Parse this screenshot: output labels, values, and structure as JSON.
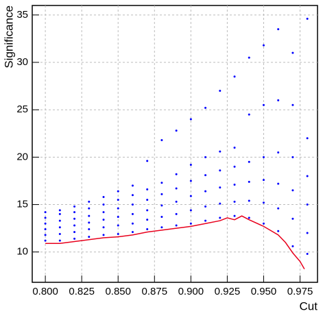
{
  "chart_data": {
    "type": "scatter",
    "x_label": "Cut",
    "y_label": "Significance",
    "xlim": [
      0.791,
      0.987
    ],
    "ylim": [
      6.8,
      36
    ],
    "xticks": [
      {
        "value": 0.8,
        "label": "0.800"
      },
      {
        "value": 0.825,
        "label": "0.825"
      },
      {
        "value": 0.85,
        "label": "0.850"
      },
      {
        "value": 0.875,
        "label": "0.875"
      },
      {
        "value": 0.9,
        "label": "0.900"
      },
      {
        "value": 0.925,
        "label": "0.925"
      },
      {
        "value": 0.95,
        "label": "0.950"
      },
      {
        "value": 0.975,
        "label": "0.975"
      }
    ],
    "yticks": [
      10,
      15,
      20,
      25,
      30,
      35
    ],
    "grid": true,
    "series": [
      {
        "color": "#0000ff",
        "marker": "dot",
        "x": [
          0.8,
          0.8,
          0.8,
          0.8,
          0.8,
          0.8,
          0.81,
          0.81,
          0.81,
          0.81,
          0.81,
          0.81,
          0.82,
          0.82,
          0.82,
          0.82,
          0.82,
          0.82,
          0.83,
          0.83,
          0.83,
          0.83,
          0.83,
          0.83,
          0.84,
          0.84,
          0.84,
          0.84,
          0.84,
          0.84,
          0.85,
          0.85,
          0.85,
          0.85,
          0.85,
          0.85,
          0.86,
          0.86,
          0.86,
          0.86,
          0.86,
          0.86,
          0.87,
          0.87,
          0.87,
          0.87,
          0.87,
          0.87,
          0.88,
          0.88,
          0.88,
          0.88,
          0.88,
          0.88,
          0.89,
          0.89,
          0.89,
          0.89,
          0.89,
          0.89,
          0.9,
          0.9,
          0.9,
          0.9,
          0.9,
          0.9,
          0.91,
          0.91,
          0.91,
          0.91,
          0.91,
          0.91,
          0.92,
          0.92,
          0.92,
          0.92,
          0.92,
          0.92,
          0.93,
          0.93,
          0.93,
          0.93,
          0.93,
          0.93,
          0.94,
          0.94,
          0.94,
          0.94,
          0.94,
          0.94,
          0.95,
          0.95,
          0.95,
          0.95,
          0.95,
          0.95,
          0.96,
          0.96,
          0.96,
          0.96,
          0.96,
          0.96,
          0.97,
          0.97,
          0.97,
          0.97,
          0.97,
          0.97,
          0.98,
          0.98,
          0.98,
          0.98,
          0.98,
          0.98
        ],
        "values": [
          11.2,
          11.8,
          12.4,
          13.0,
          13.6,
          14.2,
          11.2,
          11.9,
          12.6,
          13.3,
          14.0,
          14.4,
          11.4,
          12.1,
          12.8,
          13.5,
          14.2,
          14.8,
          11.6,
          12.4,
          13.1,
          13.8,
          14.6,
          15.3,
          11.8,
          12.6,
          13.4,
          14.2,
          15.0,
          15.8,
          11.9,
          12.8,
          13.7,
          14.6,
          15.5,
          16.4,
          12.1,
          13.0,
          14.0,
          15.0,
          16.0,
          17.0,
          12.4,
          13.4,
          14.4,
          15.5,
          16.6,
          19.6,
          12.6,
          13.7,
          14.9,
          16.1,
          17.3,
          21.8,
          12.8,
          14.0,
          15.3,
          16.7,
          18.2,
          22.8,
          13.0,
          14.4,
          15.9,
          17.5,
          19.2,
          24.0,
          13.3,
          14.8,
          16.4,
          18.1,
          20.0,
          25.2,
          13.6,
          15.1,
          16.8,
          18.6,
          20.6,
          27.0,
          13.8,
          15.3,
          17.1,
          19.0,
          21.0,
          28.5,
          13.6,
          15.4,
          17.4,
          19.5,
          24.5,
          30.5,
          13.0,
          15.2,
          17.6,
          20.0,
          25.5,
          31.8,
          12.2,
          14.6,
          17.2,
          20.5,
          26.0,
          33.5,
          10.6,
          13.5,
          16.5,
          20.0,
          25.5,
          31.0,
          9.8,
          12.0,
          15.0,
          18.0,
          22.0,
          34.6
        ]
      },
      {
        "color": "#e8001c",
        "marker": "line",
        "x": [
          0.8,
          0.81,
          0.82,
          0.83,
          0.84,
          0.85,
          0.86,
          0.87,
          0.88,
          0.89,
          0.9,
          0.91,
          0.92,
          0.925,
          0.93,
          0.935,
          0.94,
          0.95,
          0.96,
          0.965,
          0.97,
          0.975,
          0.978
        ],
        "values": [
          10.9,
          10.9,
          11.1,
          11.3,
          11.5,
          11.6,
          11.8,
          12.1,
          12.3,
          12.5,
          12.7,
          13.0,
          13.3,
          13.6,
          13.4,
          13.8,
          13.4,
          12.7,
          11.8,
          11.0,
          9.9,
          9.0,
          8.2
        ]
      }
    ]
  }
}
